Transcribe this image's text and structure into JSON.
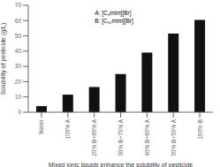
{
  "chart_data": {
    "type": "bar",
    "categories": [
      "Water",
      "100% A",
      "20% B+80% A",
      "30% B+70% A",
      "40% B+60% A",
      "50% B+50% A",
      "100% B"
    ],
    "values": [
      4.0,
      11.5,
      16.5,
      25.0,
      39.0,
      51.5,
      60.5
    ],
    "color": "#111111",
    "xlabel": "Mixed ionic liquids enhance the solubility of pesticide",
    "ylabel": "Solubility of pesticide (g/L)",
    "ylim": [
      0,
      70
    ],
    "yticks": [
      0,
      10,
      20,
      30,
      40,
      50,
      60,
      70
    ],
    "annotations": [
      "A: [C₄mim][Br]",
      "B: [C₁₀mim][Br]"
    ],
    "grid": false
  }
}
